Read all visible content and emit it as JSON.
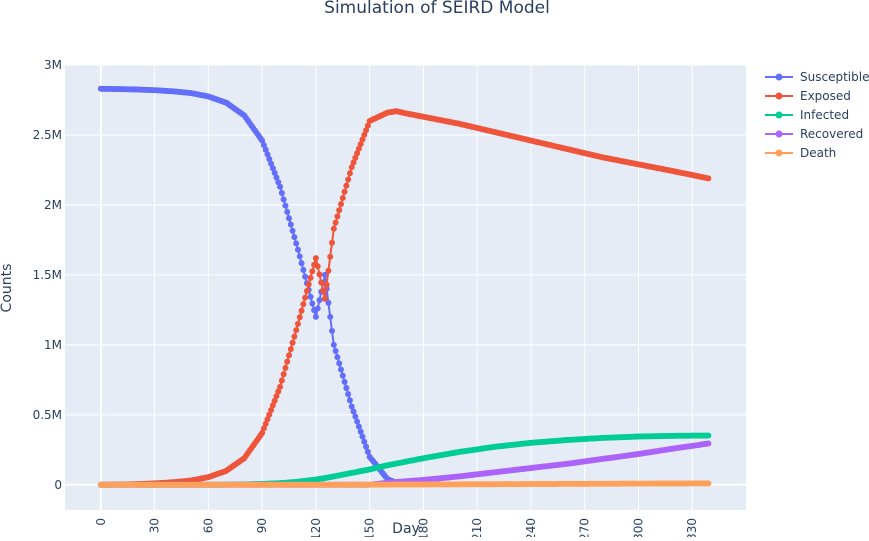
{
  "chart_data": {
    "type": "scatter",
    "title": "Simulation of SEIRD Model",
    "xlabel": "Day",
    "ylabel": "Counts",
    "xlim": [
      -20,
      360
    ],
    "ylim": [
      -180000,
      3000000
    ],
    "xticks": [
      0,
      30,
      60,
      90,
      120,
      150,
      180,
      210,
      240,
      270,
      300,
      330
    ],
    "xtick_labels": [
      "0",
      "30",
      "60",
      "90",
      "120",
      "150",
      "180",
      "210",
      "240",
      "270",
      "300",
      "330"
    ],
    "yticks": [
      0,
      500000,
      1000000,
      1500000,
      2000000,
      2500000,
      3000000
    ],
    "ytick_labels": [
      "0",
      "0.5M",
      "1M",
      "1.5M",
      "2M",
      "2.5M",
      "3M"
    ],
    "grid": true,
    "legend_position": "top-right",
    "x": [
      0,
      10,
      20,
      30,
      40,
      50,
      60,
      70,
      80,
      90,
      100,
      110,
      120,
      125,
      130,
      140,
      150,
      160,
      165,
      170,
      180,
      200,
      220,
      240,
      260,
      280,
      300,
      320,
      339
    ],
    "series": [
      {
        "name": "Susceptible",
        "color": "#636efa",
        "values": [
          2830000,
          2828000,
          2825000,
          2820000,
          2812000,
          2800000,
          2775000,
          2730000,
          2640000,
          2460000,
          2130000,
          1680000,
          1200000,
          1500000,
          1000000,
          560000,
          200000,
          40000,
          15000,
          null,
          null,
          null,
          null,
          null,
          null,
          null,
          null,
          null,
          null
        ]
      },
      {
        "name": "Exposed",
        "color": "#ef553b",
        "values": [
          0,
          2000,
          5000,
          10000,
          18000,
          30000,
          55000,
          100000,
          190000,
          370000,
          700000,
          1150000,
          1620000,
          1330000,
          1830000,
          2270000,
          2600000,
          2660000,
          2670000,
          2655000,
          2630000,
          2580000,
          2520000,
          2460000,
          2400000,
          2340000,
          2290000,
          2240000,
          2190000
        ]
      },
      {
        "name": "Infected",
        "color": "#00cc96",
        "values": [
          0,
          0,
          0,
          0,
          0,
          0,
          0,
          1000,
          3000,
          6000,
          12000,
          22000,
          38000,
          48000,
          60000,
          85000,
          110000,
          140000,
          152000,
          165000,
          190000,
          235000,
          272000,
          300000,
          320000,
          335000,
          345000,
          350000,
          352000
        ]
      },
      {
        "name": "Recovered",
        "color": "#ab63fa",
        "values": [
          0,
          0,
          0,
          0,
          0,
          0,
          0,
          0,
          0,
          0,
          0,
          0,
          0,
          0,
          0,
          0,
          0,
          15000,
          20000,
          25000,
          35000,
          60000,
          90000,
          120000,
          150000,
          185000,
          220000,
          260000,
          295000
        ]
      },
      {
        "name": "Death",
        "color": "#ffa15a",
        "values": [
          0,
          0,
          0,
          0,
          0,
          0,
          0,
          0,
          0,
          0,
          0,
          0,
          0,
          0,
          0,
          0,
          1000,
          1500,
          2000,
          2200,
          2600,
          3500,
          4500,
          5500,
          6500,
          7500,
          8500,
          9500,
          10500
        ]
      }
    ]
  }
}
